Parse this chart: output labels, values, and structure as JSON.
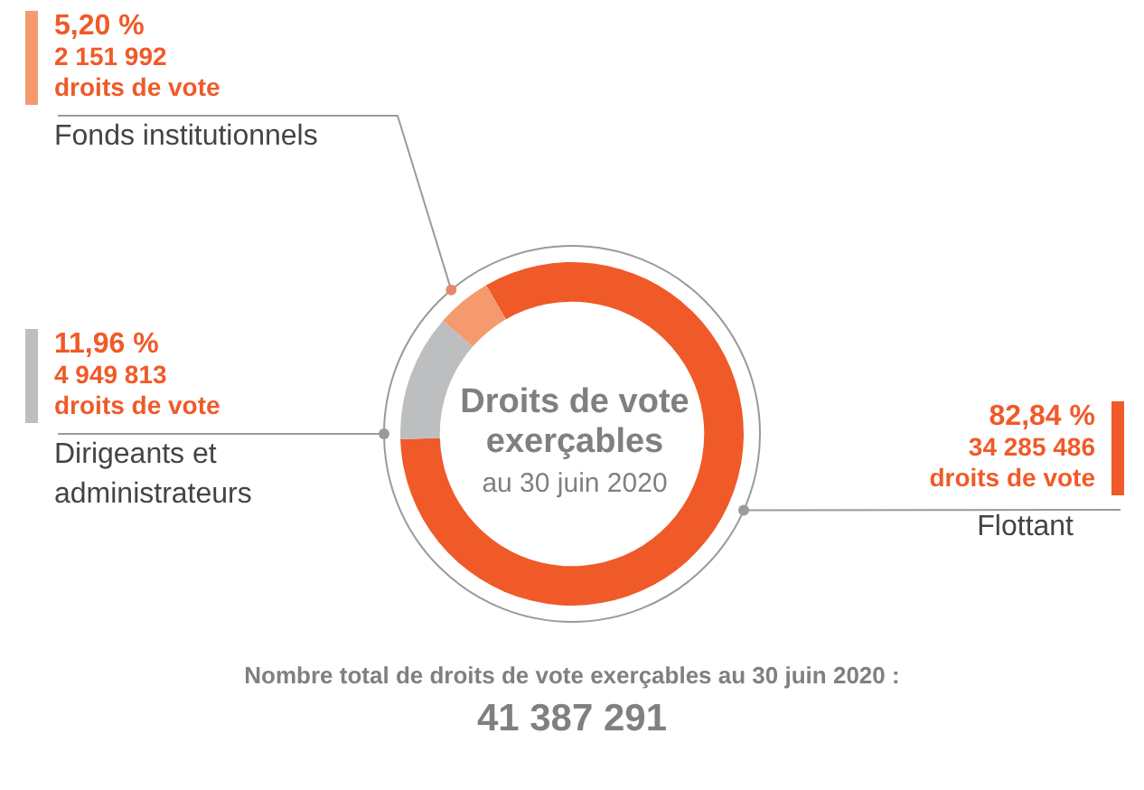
{
  "chart_data": {
    "type": "donut",
    "title": "Droits de vote exerçables",
    "subtitle": "au 30 juin 2020",
    "categories": [
      "Flottant",
      "Dirigeants et administrateurs",
      "Fonds institutionnels"
    ],
    "values": [
      82.84,
      11.96,
      5.2
    ],
    "colors": [
      "#f05a28",
      "#bcbec0",
      "#f59a6e"
    ],
    "value_labels": [
      "82,84 %\n34 285 486\ndroits de vote",
      "11,96 %\n4 949 813\ndroits de vote",
      "5,20 %\n2 151 992\ndroits de vote"
    ],
    "legend": false,
    "annotations": [
      "Nombre total de droits de vote exerçables au 30 juin 2020 :",
      "41 387 291"
    ]
  }
}
